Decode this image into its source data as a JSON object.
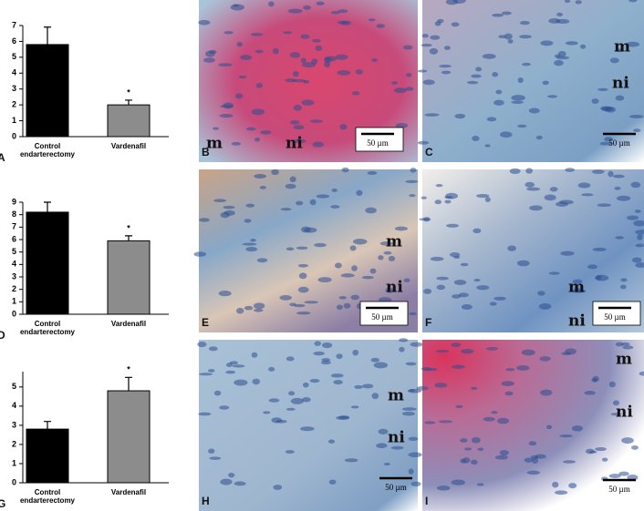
{
  "chart_data": [
    {
      "type": "bar",
      "letter": "A",
      "categories": [
        "Control endarterectomy",
        "Vardenafil"
      ],
      "values": [
        5.8,
        2.0
      ],
      "errors": [
        1.1,
        0.3
      ],
      "significance": [
        null,
        "*"
      ],
      "colors": [
        "#000000",
        "#8c8c8c"
      ],
      "ylim": [
        0,
        7
      ],
      "yticks": [
        0,
        1,
        2,
        3,
        4,
        5,
        6,
        7
      ]
    },
    {
      "type": "bar",
      "letter": "D",
      "categories": [
        "Control endarterectomy",
        "Vardenafil"
      ],
      "values": [
        8.2,
        5.9
      ],
      "errors": [
        0.8,
        0.4
      ],
      "significance": [
        null,
        "*"
      ],
      "colors": [
        "#000000",
        "#8c8c8c"
      ],
      "ylim": [
        0,
        9
      ],
      "yticks": [
        0,
        1,
        2,
        3,
        4,
        5,
        6,
        7,
        8,
        9
      ]
    },
    {
      "type": "bar",
      "letter": "G",
      "categories": [
        "Control endarterectomy",
        "Vardenafil"
      ],
      "values": [
        2.8,
        4.8
      ],
      "errors": [
        0.4,
        0.7
      ],
      "significance": [
        null,
        "*"
      ],
      "colors": [
        "#000000",
        "#8c8c8c"
      ],
      "ylim": [
        0,
        5.8
      ],
      "yticks": [
        0,
        1,
        2,
        3,
        4,
        5
      ]
    }
  ],
  "panels": [
    {
      "letter": "B",
      "labels": [
        "m",
        "ni"
      ],
      "scale_bar": "50 µm"
    },
    {
      "letter": "C",
      "labels": [
        "m",
        "ni"
      ],
      "scale_bar": "50 µm"
    },
    {
      "letter": "E",
      "labels": [
        "m",
        "ni"
      ],
      "scale_bar": "50 µm"
    },
    {
      "letter": "F",
      "labels": [
        "m",
        "ni"
      ],
      "scale_bar": "50 µm"
    },
    {
      "letter": "H",
      "labels": [
        "m",
        "ni"
      ],
      "scale_bar": "50 µm"
    },
    {
      "letter": "I",
      "labels": [
        "m",
        "ni"
      ],
      "scale_bar": "50 µm"
    }
  ]
}
